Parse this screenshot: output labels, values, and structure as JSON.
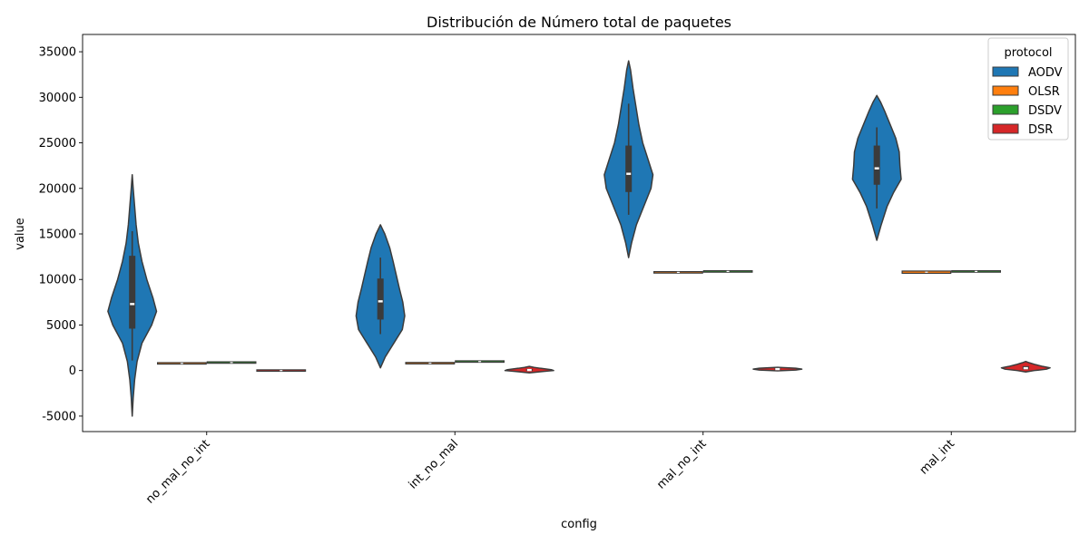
{
  "chart_data": {
    "type": "violin",
    "title": "Distribución de Número total de paquetes",
    "xlabel": "config",
    "ylabel": "value",
    "ylim": [
      -6700,
      36900
    ],
    "yticks": [
      -5000,
      0,
      5000,
      10000,
      15000,
      20000,
      25000,
      30000,
      35000
    ],
    "categories": [
      "no_mal_no_int",
      "int_no_mal",
      "mal_no_int",
      "mal_int"
    ],
    "legend": {
      "title": "protocol",
      "placement": "top-right"
    },
    "grid": false,
    "series": [
      {
        "name": "AODV",
        "color": "#1f77b4",
        "violins": [
          {
            "category": "no_mal_no_int",
            "min": -5000,
            "max": 21500,
            "q1": 4600,
            "median": 7300,
            "q3": 12600,
            "whisker_low": 1100,
            "whisker_high": 15300,
            "profile": [
              [
                -5000,
                0.0
              ],
              [
                -3000,
                0.04
              ],
              [
                -1000,
                0.1
              ],
              [
                1000,
                0.2
              ],
              [
                3000,
                0.4
              ],
              [
                5000,
                0.8
              ],
              [
                6500,
                1.0
              ],
              [
                8000,
                0.85
              ],
              [
                10000,
                0.6
              ],
              [
                12000,
                0.4
              ],
              [
                14000,
                0.25
              ],
              [
                16000,
                0.16
              ],
              [
                18000,
                0.1
              ],
              [
                20000,
                0.04
              ],
              [
                21500,
                0.0
              ]
            ]
          },
          {
            "category": "int_no_mal",
            "min": 300,
            "max": 16000,
            "q1": 5600,
            "median": 7600,
            "q3": 10100,
            "whisker_low": 4000,
            "whisker_high": 12400,
            "profile": [
              [
                300,
                0.0
              ],
              [
                1500,
                0.2
              ],
              [
                3000,
                0.55
              ],
              [
                4500,
                0.9
              ],
              [
                6000,
                1.0
              ],
              [
                7500,
                0.92
              ],
              [
                9000,
                0.78
              ],
              [
                10500,
                0.65
              ],
              [
                12000,
                0.52
              ],
              [
                13500,
                0.38
              ],
              [
                15000,
                0.18
              ],
              [
                16000,
                0.0
              ]
            ]
          },
          {
            "category": "mal_no_int",
            "min": 12400,
            "max": 34000,
            "q1": 19600,
            "median": 21600,
            "q3": 24700,
            "whisker_low": 17100,
            "whisker_high": 29300,
            "profile": [
              [
                12400,
                0.0
              ],
              [
                14000,
                0.12
              ],
              [
                16000,
                0.32
              ],
              [
                18000,
                0.62
              ],
              [
                20000,
                0.92
              ],
              [
                21500,
                1.0
              ],
              [
                23000,
                0.82
              ],
              [
                25000,
                0.58
              ],
              [
                27000,
                0.42
              ],
              [
                29000,
                0.3
              ],
              [
                31000,
                0.18
              ],
              [
                33000,
                0.08
              ],
              [
                34000,
                0.0
              ]
            ]
          },
          {
            "category": "mal_int",
            "min": 14300,
            "max": 30200,
            "q1": 20400,
            "median": 22200,
            "q3": 24700,
            "whisker_low": 17800,
            "whisker_high": 26700,
            "profile": [
              [
                14300,
                0.0
              ],
              [
                16000,
                0.18
              ],
              [
                18000,
                0.42
              ],
              [
                19500,
                0.68
              ],
              [
                21000,
                1.0
              ],
              [
                22500,
                0.95
              ],
              [
                24000,
                0.92
              ],
              [
                25500,
                0.78
              ],
              [
                27000,
                0.55
              ],
              [
                28500,
                0.32
              ],
              [
                29500,
                0.15
              ],
              [
                30200,
                0.0
              ]
            ]
          }
        ]
      },
      {
        "name": "OLSR",
        "color": "#ff7f0e",
        "violins": [
          {
            "category": "no_mal_no_int",
            "min": 750,
            "max": 850,
            "median": 790,
            "flat": true
          },
          {
            "category": "int_no_mal",
            "min": 750,
            "max": 880,
            "median": 810,
            "flat": true
          },
          {
            "category": "mal_no_int",
            "min": 10700,
            "max": 10860,
            "median": 10780,
            "flat": true
          },
          {
            "category": "mal_int",
            "min": 10650,
            "max": 10900,
            "median": 10800,
            "flat": true
          }
        ]
      },
      {
        "name": "DSDV",
        "color": "#2ca02c",
        "violins": [
          {
            "category": "no_mal_no_int",
            "min": 850,
            "max": 920,
            "median": 880,
            "flat": true
          },
          {
            "category": "int_no_mal",
            "min": 950,
            "max": 1030,
            "median": 990,
            "flat": true
          },
          {
            "category": "mal_no_int",
            "min": 10850,
            "max": 10920,
            "median": 10880,
            "flat": true
          },
          {
            "category": "mal_int",
            "min": 10850,
            "max": 10920,
            "median": 10880,
            "flat": true
          }
        ]
      },
      {
        "name": "DSR",
        "color": "#d62728",
        "violins": [
          {
            "category": "no_mal_no_int",
            "min": -30,
            "max": 30,
            "median": 0,
            "flat": true
          },
          {
            "category": "int_no_mal",
            "min": -250,
            "max": 450,
            "median": 60,
            "q1": -60,
            "q3": 180,
            "profile": [
              [
                -250,
                0.0
              ],
              [
                -100,
                0.55
              ],
              [
                0,
                1.0
              ],
              [
                100,
                0.9
              ],
              [
                250,
                0.45
              ],
              [
                350,
                0.2
              ],
              [
                450,
                0.0
              ]
            ]
          },
          {
            "category": "mal_no_int",
            "min": -30,
            "max": 350,
            "median": 160,
            "q1": 100,
            "q3": 220,
            "profile": [
              [
                -30,
                0.0
              ],
              [
                60,
                0.75
              ],
              [
                160,
                1.0
              ],
              [
                260,
                0.75
              ],
              [
                350,
                0.0
              ]
            ]
          },
          {
            "category": "mal_int",
            "min": -150,
            "max": 1000,
            "median": 260,
            "q1": 120,
            "q3": 480,
            "profile": [
              [
                -150,
                0.0
              ],
              [
                0,
                0.35
              ],
              [
                150,
                0.85
              ],
              [
                300,
                1.0
              ],
              [
                450,
                0.7
              ],
              [
                650,
                0.4
              ],
              [
                850,
                0.15
              ],
              [
                1000,
                0.0
              ]
            ]
          }
        ]
      }
    ]
  }
}
